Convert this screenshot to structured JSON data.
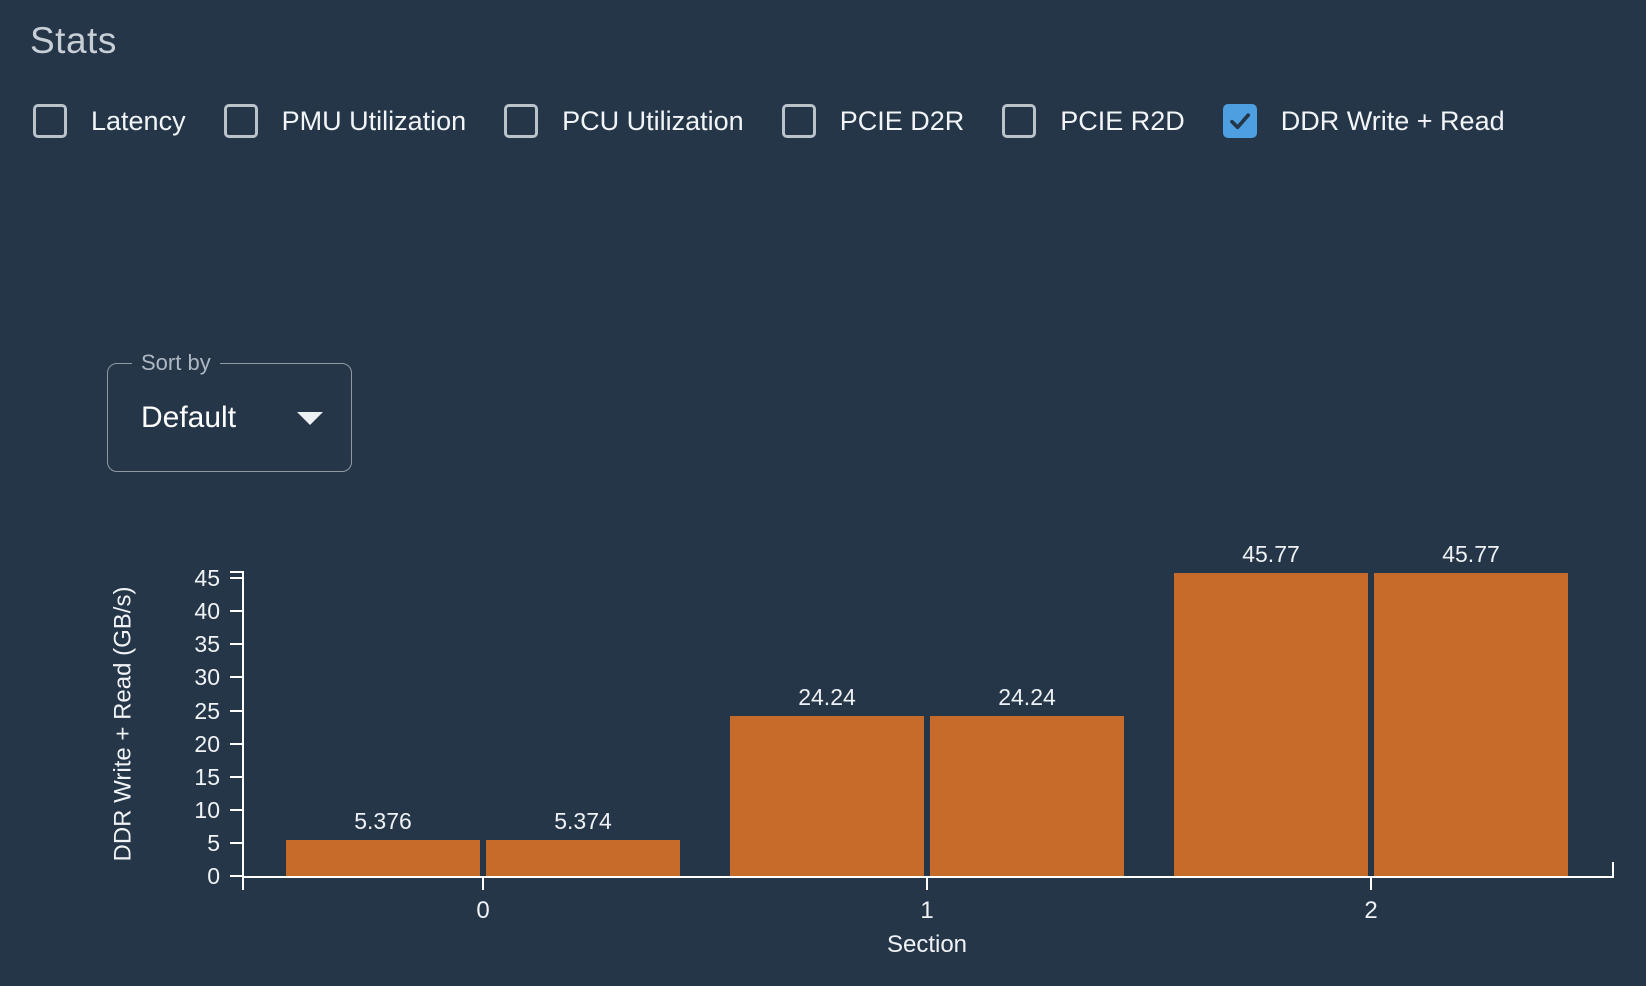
{
  "page": {
    "title": "Stats"
  },
  "colors": {
    "background": "#253649",
    "bar": "#c66b2a",
    "checkbox_checked": "#4d9fe2",
    "checkbox_border": "#bac2ca",
    "axis": "#ffffff"
  },
  "stat_toggles": [
    {
      "label": "Latency",
      "checked": false
    },
    {
      "label": "PMU Utilization",
      "checked": false
    },
    {
      "label": "PCU Utilization",
      "checked": false
    },
    {
      "label": "PCIE D2R",
      "checked": false
    },
    {
      "label": "PCIE R2D",
      "checked": false
    },
    {
      "label": "DDR Write + Read",
      "checked": true
    }
  ],
  "sort_by": {
    "label": "Sort by",
    "value": "Default"
  },
  "chart_data": {
    "type": "bar",
    "categories": [
      "0",
      "1",
      "2"
    ],
    "series": [
      {
        "name": "left-bar",
        "values": [
          5.376,
          24.24,
          45.77
        ],
        "labels": [
          "5.376",
          "24.24",
          "45.77"
        ]
      },
      {
        "name": "right-bar",
        "values": [
          5.374,
          24.24,
          45.77
        ],
        "labels": [
          "5.374",
          "24.24",
          "45.77"
        ]
      }
    ],
    "xlabel": "Section",
    "ylabel": "DDR Write + Read (GB/s)",
    "ylim": [
      0,
      46.1
    ],
    "yticks": [
      0,
      5,
      10,
      15,
      20,
      25,
      30,
      35,
      40,
      45
    ],
    "grid": false,
    "legend": "none",
    "bar_color": "#c66b2a"
  }
}
